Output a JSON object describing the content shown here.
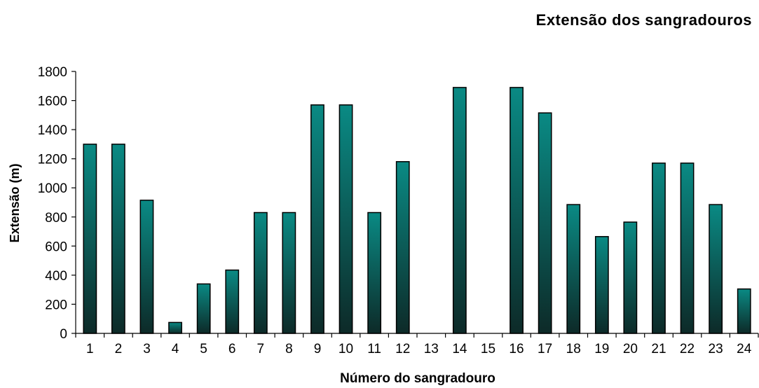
{
  "chart_data": {
    "type": "bar",
    "title": "Extensão dos sangradouros",
    "xlabel": "Número do sangradouro",
    "ylabel": "Extensão (m)",
    "ylim": [
      0,
      1800
    ],
    "yticks": [
      0,
      200,
      400,
      600,
      800,
      1000,
      1200,
      1400,
      1600,
      1800
    ],
    "grid": false,
    "categories": [
      "1",
      "2",
      "3",
      "4",
      "5",
      "6",
      "7",
      "8",
      "9",
      "10",
      "11",
      "12",
      "13",
      "14",
      "15",
      "16",
      "17",
      "18",
      "19",
      "20",
      "21",
      "22",
      "23",
      "24"
    ],
    "values": [
      1300,
      1300,
      915,
      75,
      340,
      435,
      830,
      830,
      1570,
      1570,
      830,
      1180,
      0,
      1690,
      0,
      1690,
      1515,
      885,
      665,
      765,
      1170,
      1170,
      885,
      305
    ],
    "bar_color_top": "#0a8a84",
    "bar_color_bottom": "#0d2a28"
  }
}
